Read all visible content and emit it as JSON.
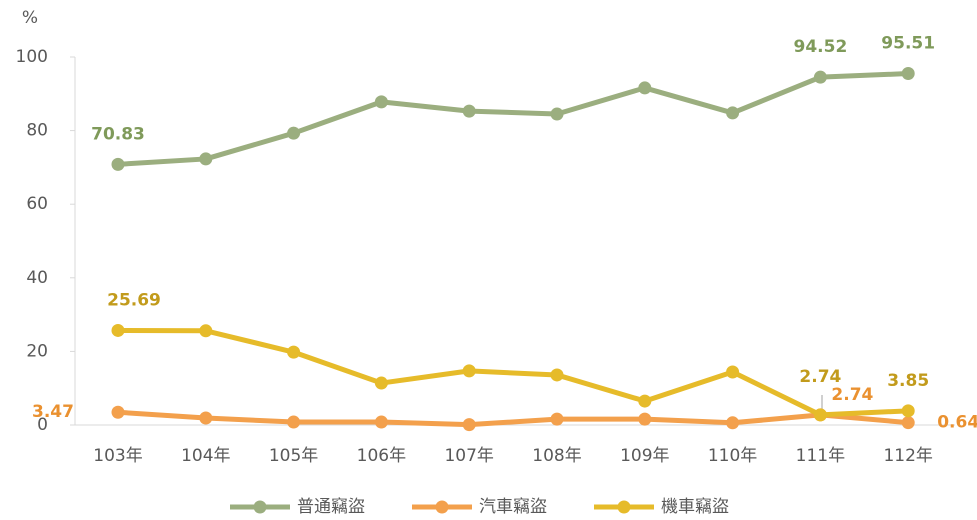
{
  "chart_data": {
    "type": "line",
    "y_label": "%",
    "categories": [
      "103年",
      "104年",
      "105年",
      "106年",
      "107年",
      "108年",
      "109年",
      "110年",
      "111年",
      "112年"
    ],
    "series": [
      {
        "name": "普通竊盜",
        "color": "#9bae7f",
        "label_color": "#7f9a5a",
        "values": [
          70.83,
          72.3,
          79.3,
          87.8,
          85.3,
          84.5,
          91.6,
          84.8,
          94.52,
          95.51
        ],
        "value_labels": [
          "70.83",
          null,
          null,
          null,
          null,
          null,
          null,
          null,
          "94.52",
          "95.51"
        ]
      },
      {
        "name": "汽車竊盜",
        "color": "#f3a04c",
        "label_color": "#ea9130",
        "values": [
          3.47,
          1.9,
          0.8,
          0.8,
          0.1,
          1.6,
          1.6,
          0.6,
          2.74,
          0.64
        ],
        "value_labels": [
          "3.47",
          null,
          null,
          null,
          null,
          null,
          null,
          null,
          "2.74",
          "0.64"
        ]
      },
      {
        "name": "機車竊盜",
        "color": "#e6bb2a",
        "label_color": "#c29b1c",
        "values": [
          25.69,
          25.6,
          19.8,
          11.4,
          14.7,
          13.6,
          6.5,
          14.4,
          2.74,
          3.85
        ],
        "value_labels": [
          "25.69",
          null,
          null,
          null,
          null,
          null,
          null,
          null,
          "2.74",
          "3.85"
        ]
      }
    ],
    "ylim": [
      0,
      100
    ],
    "yticks": [
      0,
      20,
      40,
      60,
      80,
      100
    ],
    "legend": "bottom"
  }
}
